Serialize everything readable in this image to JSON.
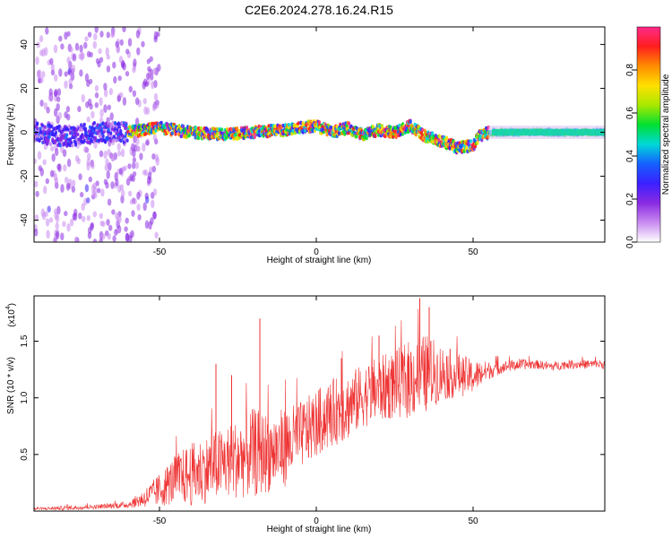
{
  "figure": {
    "title": "C2E6.2024.278.16.24.R15"
  },
  "colors": {
    "snr_line": "#ee3333",
    "colormap": [
      "#ffffff",
      "#c98bf0",
      "#8a2be2",
      "#3b20ff",
      "#1560ff",
      "#00d8d8",
      "#00e030",
      "#a8e800",
      "#ffe000",
      "#ff8c00",
      "#ff1e1e",
      "#ff2a8a"
    ]
  },
  "chart_data": [
    {
      "type": "heatmap",
      "title": "",
      "xlabel": "Height of straight line (km)",
      "ylabel": "Frequency (Hz)",
      "xlim": [
        -90,
        92
      ],
      "ylim": [
        -50,
        48
      ],
      "xticks": [
        -50,
        0,
        50
      ],
      "yticks": [
        -40,
        -20,
        0,
        20,
        40
      ],
      "colorbar": {
        "label": "Normalized spectral amplitude",
        "range": [
          0,
          1
        ],
        "ticks": [
          "0.0",
          "0.2",
          "0.4",
          "0.6",
          "0.8"
        ]
      },
      "ridge": {
        "x": [
          -90,
          -80,
          -70,
          -60,
          -50,
          -40,
          -30,
          -20,
          -10,
          0,
          5,
          10,
          15,
          20,
          25,
          30,
          35,
          40,
          45,
          50,
          52,
          55,
          60,
          92
        ],
        "y": [
          0,
          -2,
          0,
          0,
          2,
          0,
          -1,
          0,
          1,
          3,
          0,
          2,
          -1,
          1,
          0,
          3,
          -2,
          -4,
          -7,
          -6,
          -2,
          0,
          0,
          0
        ]
      }
    },
    {
      "type": "line",
      "title": "",
      "xlabel": "Height of straight line (km)",
      "ylabel": "SNR (10 * v/v)",
      "y_multiplier": "(x10",
      "y_multiplier_exp": "4",
      "y_multiplier_close": ")",
      "xlim": [
        -90,
        92
      ],
      "ylim": [
        0,
        1.9
      ],
      "xticks": [
        -50,
        0,
        50
      ],
      "yticks": [
        "0.5",
        "1.0",
        "1.5"
      ],
      "series": [
        {
          "x": [
            -90,
            -80,
            -70,
            -60,
            -55,
            -50,
            -45,
            -40,
            -35,
            -30,
            -25,
            -20,
            -15,
            -10,
            -5,
            0,
            5,
            10,
            15,
            20,
            25,
            30,
            35,
            40,
            45,
            50,
            55,
            60,
            65,
            70,
            75,
            80,
            85,
            92
          ],
          "y": [
            0.02,
            0.03,
            0.04,
            0.06,
            0.12,
            0.2,
            0.3,
            0.35,
            0.4,
            0.45,
            0.5,
            0.55,
            0.55,
            0.6,
            0.7,
            0.8,
            0.9,
            0.95,
            1.05,
            1.1,
            1.15,
            1.2,
            1.25,
            1.25,
            1.22,
            1.2,
            1.25,
            1.28,
            1.3,
            1.3,
            1.28,
            1.3,
            1.3,
            1.3
          ],
          "spread": [
            0.01,
            0.02,
            0.02,
            0.03,
            0.08,
            0.15,
            0.22,
            0.28,
            0.3,
            0.32,
            0.35,
            0.4,
            0.35,
            0.35,
            0.3,
            0.3,
            0.3,
            0.3,
            0.28,
            0.3,
            0.3,
            0.35,
            0.35,
            0.25,
            0.2,
            0.15,
            0.08,
            0.05,
            0.05,
            0.04,
            0.04,
            0.04,
            0.04,
            0.04
          ],
          "peaks": [
            {
              "x": -18,
              "y": 1.7
            },
            {
              "x": 33,
              "y": 1.88
            },
            {
              "x": 36,
              "y": 1.8
            },
            {
              "x": -27,
              "y": 1.2
            },
            {
              "x": -32,
              "y": 1.3
            },
            {
              "x": 20,
              "y": 1.55
            },
            {
              "x": 8,
              "y": 1.35
            }
          ]
        }
      ]
    }
  ]
}
